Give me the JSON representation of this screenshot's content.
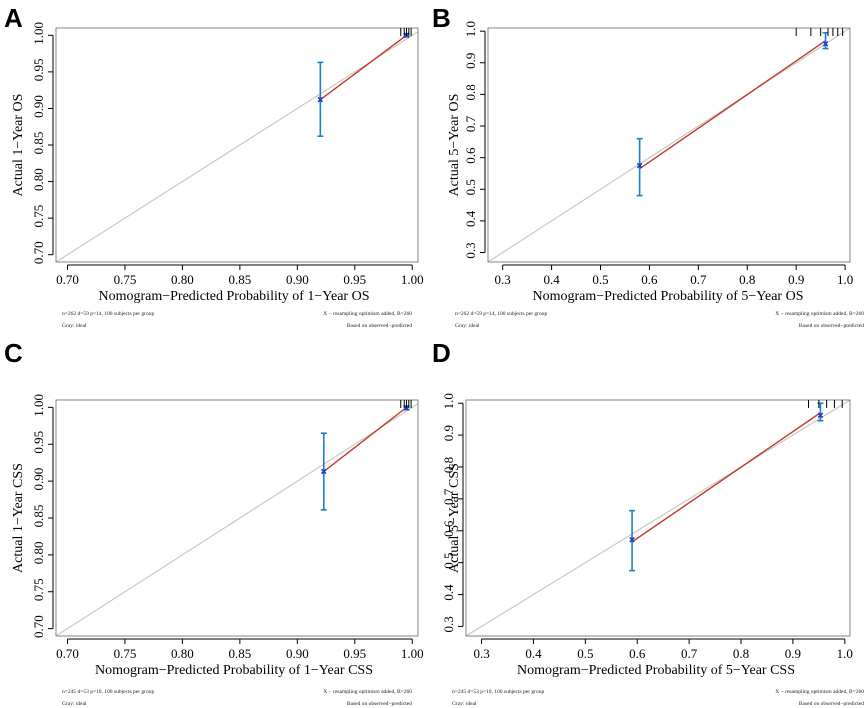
{
  "chart_data": [
    {
      "type": "calibration",
      "panel": "A",
      "xlabel": "Nomogram−Predicted Probability of 1−Year OS",
      "ylabel": "Actual 1−Year OS",
      "xlim": [
        0.69,
        1.005
      ],
      "ylim": [
        0.69,
        1.01
      ],
      "xticks": [
        0.7,
        0.75,
        0.8,
        0.85,
        0.9,
        0.95,
        1.0
      ],
      "yticks": [
        0.7,
        0.75,
        0.8,
        0.85,
        0.9,
        0.95,
        1.0
      ],
      "tick_labels_x": [
        "0.70",
        "0.75",
        "0.80",
        "0.85",
        "0.90",
        "0.95",
        "1.00"
      ],
      "tick_labels_y": [
        "0.70",
        "0.75",
        "0.80",
        "0.85",
        "0.90",
        "0.95",
        "1.00"
      ],
      "ideal_line": [
        [
          0.69,
          0.69
        ],
        [
          1.005,
          1.005
        ]
      ],
      "calibration_line": [
        [
          0.92,
          0.912
        ],
        [
          0.995,
          1.0
        ]
      ],
      "points": [
        {
          "x": 0.92,
          "y": 0.912,
          "lower": 0.862,
          "upper": 0.963
        },
        {
          "x": 0.995,
          "y": 1.0,
          "lower": 0.998,
          "upper": 1.002
        }
      ],
      "rug_x": [
        0.99,
        0.993,
        0.995,
        0.997,
        0.999
      ],
      "footnote_left_1": "n=262 d=59 p=14, 100 subjects per group",
      "footnote_left_2": "Gray: ideal",
      "footnote_right_1": "X − resampling optimism added, B=260",
      "footnote_right_2": "Based on observed−predicted"
    },
    {
      "type": "calibration",
      "panel": "B",
      "xlabel": "Nomogram−Predicted Probability of 5−Year OS",
      "ylabel": "Actual 5−Year OS",
      "xlim": [
        0.27,
        1.01
      ],
      "ylim": [
        0.27,
        1.01
      ],
      "xticks": [
        0.3,
        0.4,
        0.5,
        0.6,
        0.7,
        0.8,
        0.9,
        1.0
      ],
      "yticks": [
        0.3,
        0.4,
        0.5,
        0.6,
        0.7,
        0.8,
        0.9,
        1.0
      ],
      "tick_labels_x": [
        "0.3",
        "0.4",
        "0.5",
        "0.6",
        "0.7",
        "0.8",
        "0.9",
        "1.0"
      ],
      "tick_labels_y": [
        "0.3",
        "0.4",
        "0.5",
        "0.6",
        "0.7",
        "0.8",
        "0.9",
        "1.0"
      ],
      "ideal_line": [
        [
          0.27,
          0.27
        ],
        [
          1.01,
          1.01
        ]
      ],
      "calibration_line": [
        [
          0.58,
          0.565
        ],
        [
          0.96,
          0.97
        ]
      ],
      "points": [
        {
          "x": 0.58,
          "y": 0.575,
          "lower": 0.48,
          "upper": 0.66
        },
        {
          "x": 0.96,
          "y": 0.96,
          "lower": 0.945,
          "upper": 0.995
        }
      ],
      "rug_x": [
        0.9,
        0.93,
        0.95,
        0.965,
        0.975,
        0.985,
        0.995
      ],
      "footnote_left_1": "n=262 d=59 p=14, 100 subjects per group",
      "footnote_left_2": "Gray: ideal",
      "footnote_right_1": "X − resampling optimism added, B=260",
      "footnote_right_2": "Based on observed−predicted"
    },
    {
      "type": "calibration",
      "panel": "C",
      "xlabel": "Nomogram−Predicted Probability of 1−Year CSS",
      "ylabel": "Actual 1−Year CSS",
      "xlim": [
        0.69,
        1.005
      ],
      "ylim": [
        0.69,
        1.01
      ],
      "xticks": [
        0.7,
        0.75,
        0.8,
        0.85,
        0.9,
        0.95,
        1.0
      ],
      "yticks": [
        0.7,
        0.75,
        0.8,
        0.85,
        0.9,
        0.95,
        1.0
      ],
      "tick_labels_x": [
        "0.70",
        "0.75",
        "0.80",
        "0.85",
        "0.90",
        "0.95",
        "1.00"
      ],
      "tick_labels_y": [
        "0.70",
        "0.75",
        "0.80",
        "0.85",
        "0.90",
        "0.95",
        "1.00"
      ],
      "ideal_line": [
        [
          0.69,
          0.69
        ],
        [
          1.005,
          1.005
        ]
      ],
      "calibration_line": [
        [
          0.923,
          0.913
        ],
        [
          0.995,
          1.0
        ]
      ],
      "points": [
        {
          "x": 0.923,
          "y": 0.913,
          "lower": 0.861,
          "upper": 0.965
        },
        {
          "x": 0.995,
          "y": 0.999,
          "lower": 0.997,
          "upper": 1.002
        }
      ],
      "rug_x": [
        0.99,
        0.993,
        0.995,
        0.997,
        0.999
      ],
      "footnote_left_1": "n=245 d=53 p=10, 100 subjects per group",
      "footnote_left_2": "Gray: ideal",
      "footnote_right_1": "X − resampling optimism added, B=260",
      "footnote_right_2": "Based on observed−predicted"
    },
    {
      "type": "calibration",
      "panel": "D",
      "xlabel": "Nomogram−Predicted Probability of 5−Year CSS",
      "ylabel": "Actual 5−Year CSS",
      "xlim": [
        0.27,
        1.01
      ],
      "ylim": [
        0.27,
        1.01
      ],
      "xticks": [
        0.3,
        0.4,
        0.5,
        0.6,
        0.7,
        0.8,
        0.9,
        1.0
      ],
      "yticks": [
        0.3,
        0.4,
        0.5,
        0.6,
        0.7,
        0.8,
        0.9,
        1.0
      ],
      "tick_labels_x": [
        "0.3",
        "0.4",
        "0.5",
        "0.6",
        "0.7",
        "0.8",
        "0.9",
        "1.0"
      ],
      "tick_labels_y": [
        "0.3",
        "0.4",
        "0.5",
        "0.6",
        "0.7",
        "0.8",
        "0.9",
        "1.0"
      ],
      "ideal_line": [
        [
          0.27,
          0.27
        ],
        [
          1.01,
          1.01
        ]
      ],
      "calibration_line": [
        [
          0.59,
          0.565
        ],
        [
          0.953,
          0.97
        ]
      ],
      "points": [
        {
          "x": 0.59,
          "y": 0.572,
          "lower": 0.475,
          "upper": 0.663
        },
        {
          "x": 0.953,
          "y": 0.962,
          "lower": 0.945,
          "upper": 1.0
        }
      ],
      "rug_x": [
        0.93,
        0.95,
        0.965,
        0.98,
        0.995
      ],
      "footnote_left_1": "n=245 d=53 p=10, 100 subjects per group",
      "footnote_left_2": "Gray: ideal",
      "footnote_right_1": "X − resampling optimism added, B=260",
      "footnote_right_2": "Based on observed−predicted"
    }
  ],
  "colors": {
    "ideal": "#c8c8c8",
    "calibration": "#c0392b",
    "errorbar": "#1f7fc1",
    "point": "#1a3cc7",
    "axis": "#000000"
  }
}
